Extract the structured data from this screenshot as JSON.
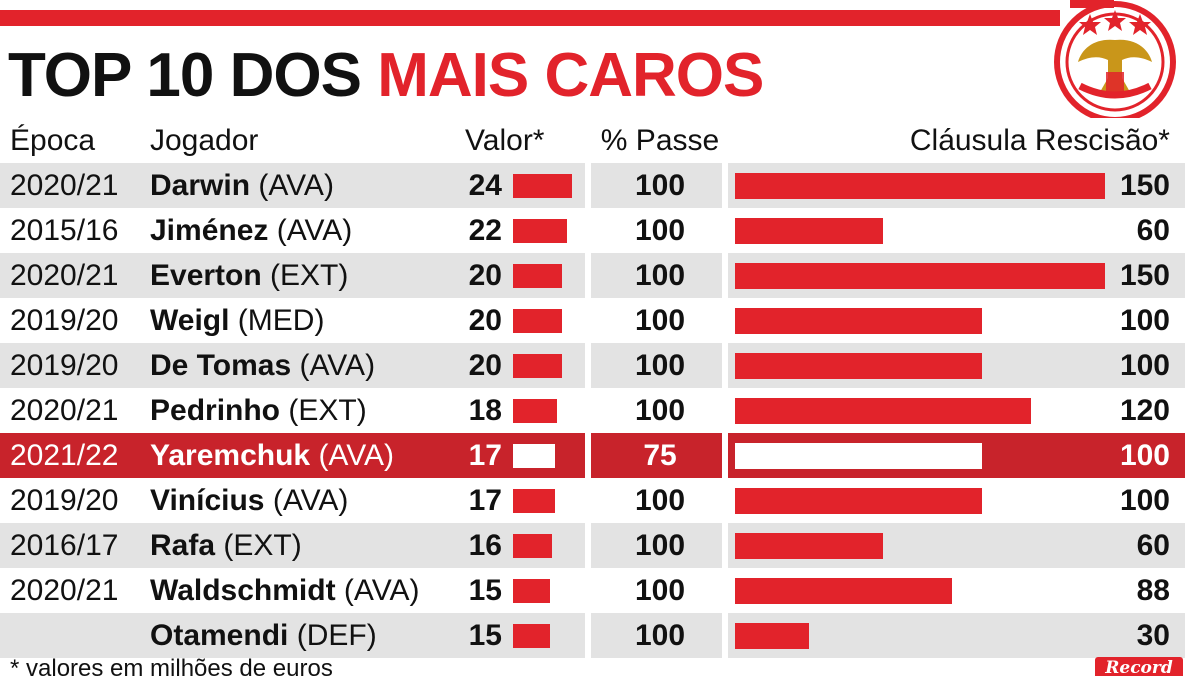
{
  "title": {
    "part1": "TOP 10 DOS",
    "part2": "MAIS CAROS"
  },
  "headers": {
    "epoca": "Época",
    "jogador": "Jogador",
    "valor": "Valor*",
    "passe": "% Passe",
    "clausula": "Cláusula Rescisão*"
  },
  "footnote": "* valores em milhões de euros",
  "logo_text": "Record",
  "colors": {
    "accent": "#e2232b",
    "highlight_row": "#c8232b",
    "stripe": "#e3e3e3"
  },
  "chart_data": {
    "type": "table",
    "columns": [
      "Época",
      "Jogador",
      "Valor*",
      "% Passe",
      "Cláusula Rescisão*"
    ],
    "rows": [
      {
        "epoca": "2020/21",
        "nome": "Darwin",
        "pos": "(AVA)",
        "valor": 24,
        "passe": 100,
        "clausula": 150
      },
      {
        "epoca": "2015/16",
        "nome": "Jiménez",
        "pos": "(AVA)",
        "valor": 22,
        "passe": 100,
        "clausula": 60
      },
      {
        "epoca": "2020/21",
        "nome": "Everton",
        "pos": "(EXT)",
        "valor": 20,
        "passe": 100,
        "clausula": 150
      },
      {
        "epoca": "2019/20",
        "nome": "Weigl",
        "pos": "(MED)",
        "valor": 20,
        "passe": 100,
        "clausula": 100
      },
      {
        "epoca": "2019/20",
        "nome": "De Tomas",
        "pos": "(AVA)",
        "valor": 20,
        "passe": 100,
        "clausula": 100
      },
      {
        "epoca": "2020/21",
        "nome": "Pedrinho",
        "pos": "(EXT)",
        "valor": 18,
        "passe": 100,
        "clausula": 120
      },
      {
        "epoca": "2021/22",
        "nome": "Yaremchuk",
        "pos": "(AVA)",
        "valor": 17,
        "passe": 75,
        "clausula": 100,
        "highlight": true
      },
      {
        "epoca": "2019/20",
        "nome": "Vinícius",
        "pos": "(AVA)",
        "valor": 17,
        "passe": 100,
        "clausula": 100
      },
      {
        "epoca": "2016/17",
        "nome": "Rafa",
        "pos": "(EXT)",
        "valor": 16,
        "passe": 100,
        "clausula": 60
      },
      {
        "epoca": "2020/21",
        "nome": "Waldschmidt",
        "pos": "(AVA)",
        "valor": 15,
        "passe": 100,
        "clausula": 88
      },
      {
        "epoca": "",
        "nome": "Otamendi",
        "pos": "(DEF)",
        "valor": 15,
        "passe": 100,
        "clausula": 30
      }
    ]
  }
}
